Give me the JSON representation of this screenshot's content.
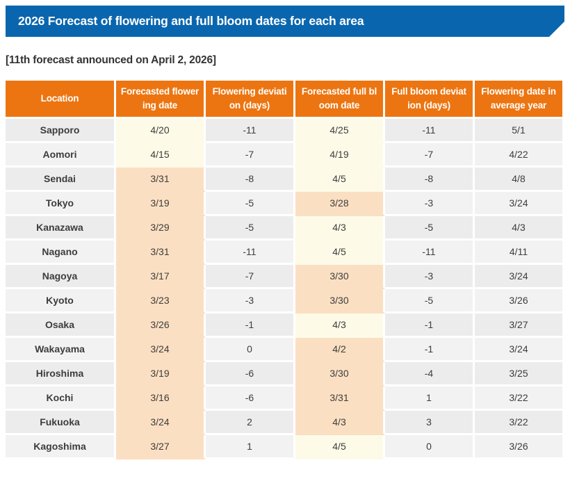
{
  "colors": {
    "banner-bg": "#0966AE",
    "header-bg": "#EC7511",
    "row-odd": "#ECECEC",
    "row-even": "#F2F2F2",
    "cream": "#FDFBE8",
    "peach": "#FBDFC2",
    "text": "#3C3C3C"
  },
  "banner": {
    "title": "2026 Forecast of flowering and full bloom dates for each area"
  },
  "subtitle": "[11th forecast announced on April 2, 2026]",
  "table": {
    "cell_keys": [
      "flowering-date",
      "flowering-deviation",
      "full-bloom-date",
      "full-bloom-deviation",
      "average-year"
    ],
    "columns": [
      {
        "key": "location",
        "label": "Location"
      },
      {
        "key": "forecasted-flowering-date",
        "label": "Forecasted flower\ning date"
      },
      {
        "key": "flowering-deviation",
        "label": "Flowering deviati\non (days)"
      },
      {
        "key": "forecasted-full-bloom-date",
        "label": "Forecasted full bl\noom date"
      },
      {
        "key": "full-bloom-deviation",
        "label": "Full bloom deviat\nion (days)"
      },
      {
        "key": "flowering-date-average-year",
        "label": "Flowering date in\naverage year"
      }
    ],
    "rows": [
      {
        "location": "Sapporo",
        "cells": [
          {
            "v": "4/20",
            "hl": "cream"
          },
          {
            "v": "-11"
          },
          {
            "v": "4/25",
            "hl": "cream"
          },
          {
            "v": "-11"
          },
          {
            "v": "5/1"
          }
        ]
      },
      {
        "location": "Aomori",
        "cells": [
          {
            "v": "4/15",
            "hl": "cream"
          },
          {
            "v": "-7"
          },
          {
            "v": "4/19",
            "hl": "cream"
          },
          {
            "v": "-7"
          },
          {
            "v": "4/22"
          }
        ]
      },
      {
        "location": "Sendai",
        "cells": [
          {
            "v": "3/31",
            "hl": "peach"
          },
          {
            "v": "-8"
          },
          {
            "v": "4/5",
            "hl": "cream"
          },
          {
            "v": "-8"
          },
          {
            "v": "4/8"
          }
        ]
      },
      {
        "location": "Tokyo",
        "cells": [
          {
            "v": "3/19",
            "hl": "peach"
          },
          {
            "v": "-5"
          },
          {
            "v": "3/28",
            "hl": "peach"
          },
          {
            "v": "-3"
          },
          {
            "v": "3/24"
          }
        ]
      },
      {
        "location": "Kanazawa",
        "cells": [
          {
            "v": "3/29",
            "hl": "peach"
          },
          {
            "v": "-5"
          },
          {
            "v": "4/3",
            "hl": "cream"
          },
          {
            "v": "-5"
          },
          {
            "v": "4/3"
          }
        ]
      },
      {
        "location": "Nagano",
        "cells": [
          {
            "v": "3/31",
            "hl": "peach"
          },
          {
            "v": "-11"
          },
          {
            "v": "4/5",
            "hl": "cream"
          },
          {
            "v": "-11"
          },
          {
            "v": "4/11"
          }
        ]
      },
      {
        "location": "Nagoya",
        "cells": [
          {
            "v": "3/17",
            "hl": "peach"
          },
          {
            "v": "-7"
          },
          {
            "v": "3/30",
            "hl": "peach"
          },
          {
            "v": "-3"
          },
          {
            "v": "3/24"
          }
        ]
      },
      {
        "location": "Kyoto",
        "cells": [
          {
            "v": "3/23",
            "hl": "peach"
          },
          {
            "v": "-3"
          },
          {
            "v": "3/30",
            "hl": "peach"
          },
          {
            "v": "-5"
          },
          {
            "v": "3/26"
          }
        ]
      },
      {
        "location": "Osaka",
        "cells": [
          {
            "v": "3/26",
            "hl": "peach"
          },
          {
            "v": "-1"
          },
          {
            "v": "4/3",
            "hl": "cream"
          },
          {
            "v": "-1"
          },
          {
            "v": "3/27"
          }
        ]
      },
      {
        "location": "Wakayama",
        "cells": [
          {
            "v": "3/24",
            "hl": "peach"
          },
          {
            "v": "0"
          },
          {
            "v": "4/2",
            "hl": "peach"
          },
          {
            "v": "-1"
          },
          {
            "v": "3/24"
          }
        ]
      },
      {
        "location": "Hiroshima",
        "cells": [
          {
            "v": "3/19",
            "hl": "peach"
          },
          {
            "v": "-6"
          },
          {
            "v": "3/30",
            "hl": "peach"
          },
          {
            "v": "-4"
          },
          {
            "v": "3/25"
          }
        ]
      },
      {
        "location": "Kochi",
        "cells": [
          {
            "v": "3/16",
            "hl": "peach"
          },
          {
            "v": "-6"
          },
          {
            "v": "3/31",
            "hl": "peach"
          },
          {
            "v": "1"
          },
          {
            "v": "3/22"
          }
        ]
      },
      {
        "location": "Fukuoka",
        "cells": [
          {
            "v": "3/24",
            "hl": "peach"
          },
          {
            "v": "2"
          },
          {
            "v": "4/3",
            "hl": "peach"
          },
          {
            "v": "3"
          },
          {
            "v": "3/22"
          }
        ]
      },
      {
        "location": "Kagoshima",
        "cells": [
          {
            "v": "3/27",
            "hl": "peach"
          },
          {
            "v": "1"
          },
          {
            "v": "4/5",
            "hl": "cream"
          },
          {
            "v": "0"
          },
          {
            "v": "3/26"
          }
        ]
      }
    ]
  }
}
